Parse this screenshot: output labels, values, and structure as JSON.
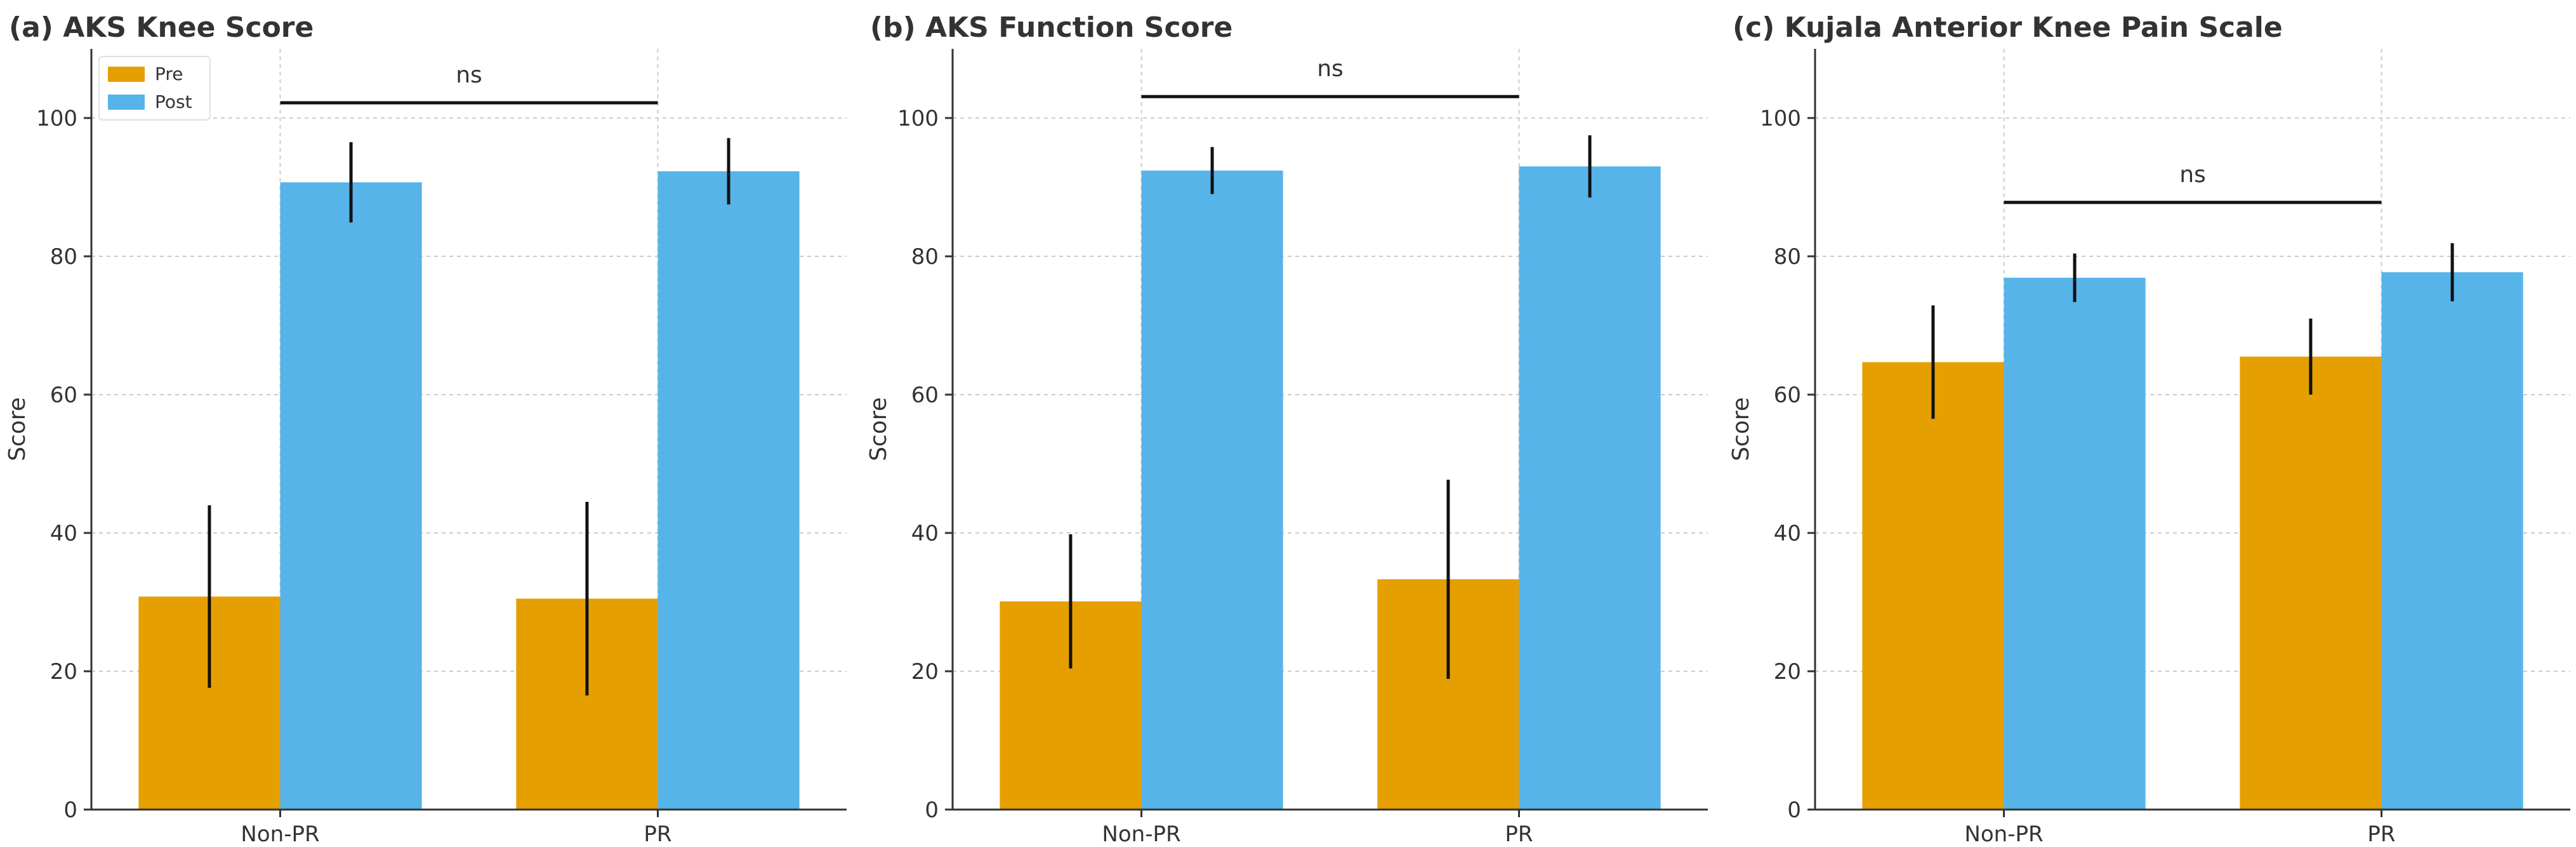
{
  "colors": {
    "pre": "#E69F00",
    "post": "#56B4E9",
    "axis": "#333333",
    "grid": "#cccccc",
    "error": "#111111"
  },
  "legend": {
    "placement": "upper-left",
    "panel": 0,
    "entries": [
      "Pre",
      "Post"
    ]
  },
  "chart_data": [
    {
      "type": "bar",
      "title": "(a)  AKS Knee Score",
      "ylabel": "Score",
      "ylim": [
        0,
        110
      ],
      "yticks": [
        "0",
        "20",
        "40",
        "60",
        "80",
        "100"
      ],
      "grid": true,
      "categories": [
        "Non-PR",
        "PR"
      ],
      "series": [
        {
          "name": "Pre",
          "values": [
            30.8,
            30.5
          ],
          "errors": [
            13.2,
            14.0
          ]
        },
        {
          "name": "Post",
          "values": [
            90.7,
            92.3
          ],
          "errors": [
            5.8,
            4.8
          ]
        }
      ],
      "annotation": {
        "text": "ns",
        "y": 102.2
      }
    },
    {
      "type": "bar",
      "title": "(b)  AKS Function Score",
      "ylabel": "Score",
      "ylim": [
        0,
        110
      ],
      "yticks": [
        "0",
        "20",
        "40",
        "60",
        "80",
        "100"
      ],
      "grid": true,
      "categories": [
        "Non-PR",
        "PR"
      ],
      "series": [
        {
          "name": "Pre",
          "values": [
            30.1,
            33.3
          ],
          "errors": [
            9.7,
            14.4
          ]
        },
        {
          "name": "Post",
          "values": [
            92.4,
            93.0
          ],
          "errors": [
            3.4,
            4.5
          ]
        }
      ],
      "annotation": {
        "text": "ns",
        "y": 103.1
      }
    },
    {
      "type": "bar",
      "title": "(c)  Kujala Anterior Knee Pain Scale",
      "ylabel": "Score",
      "ylim": [
        0,
        110
      ],
      "yticks": [
        "0",
        "20",
        "40",
        "60",
        "80",
        "100"
      ],
      "grid": true,
      "categories": [
        "Non-PR",
        "PR"
      ],
      "series": [
        {
          "name": "Pre",
          "values": [
            64.7,
            65.5
          ],
          "errors": [
            8.2,
            5.5
          ]
        },
        {
          "name": "Post",
          "values": [
            76.9,
            77.7
          ],
          "errors": [
            3.5,
            4.2
          ]
        }
      ],
      "annotation": {
        "text": "ns",
        "y": 87.8
      }
    }
  ]
}
